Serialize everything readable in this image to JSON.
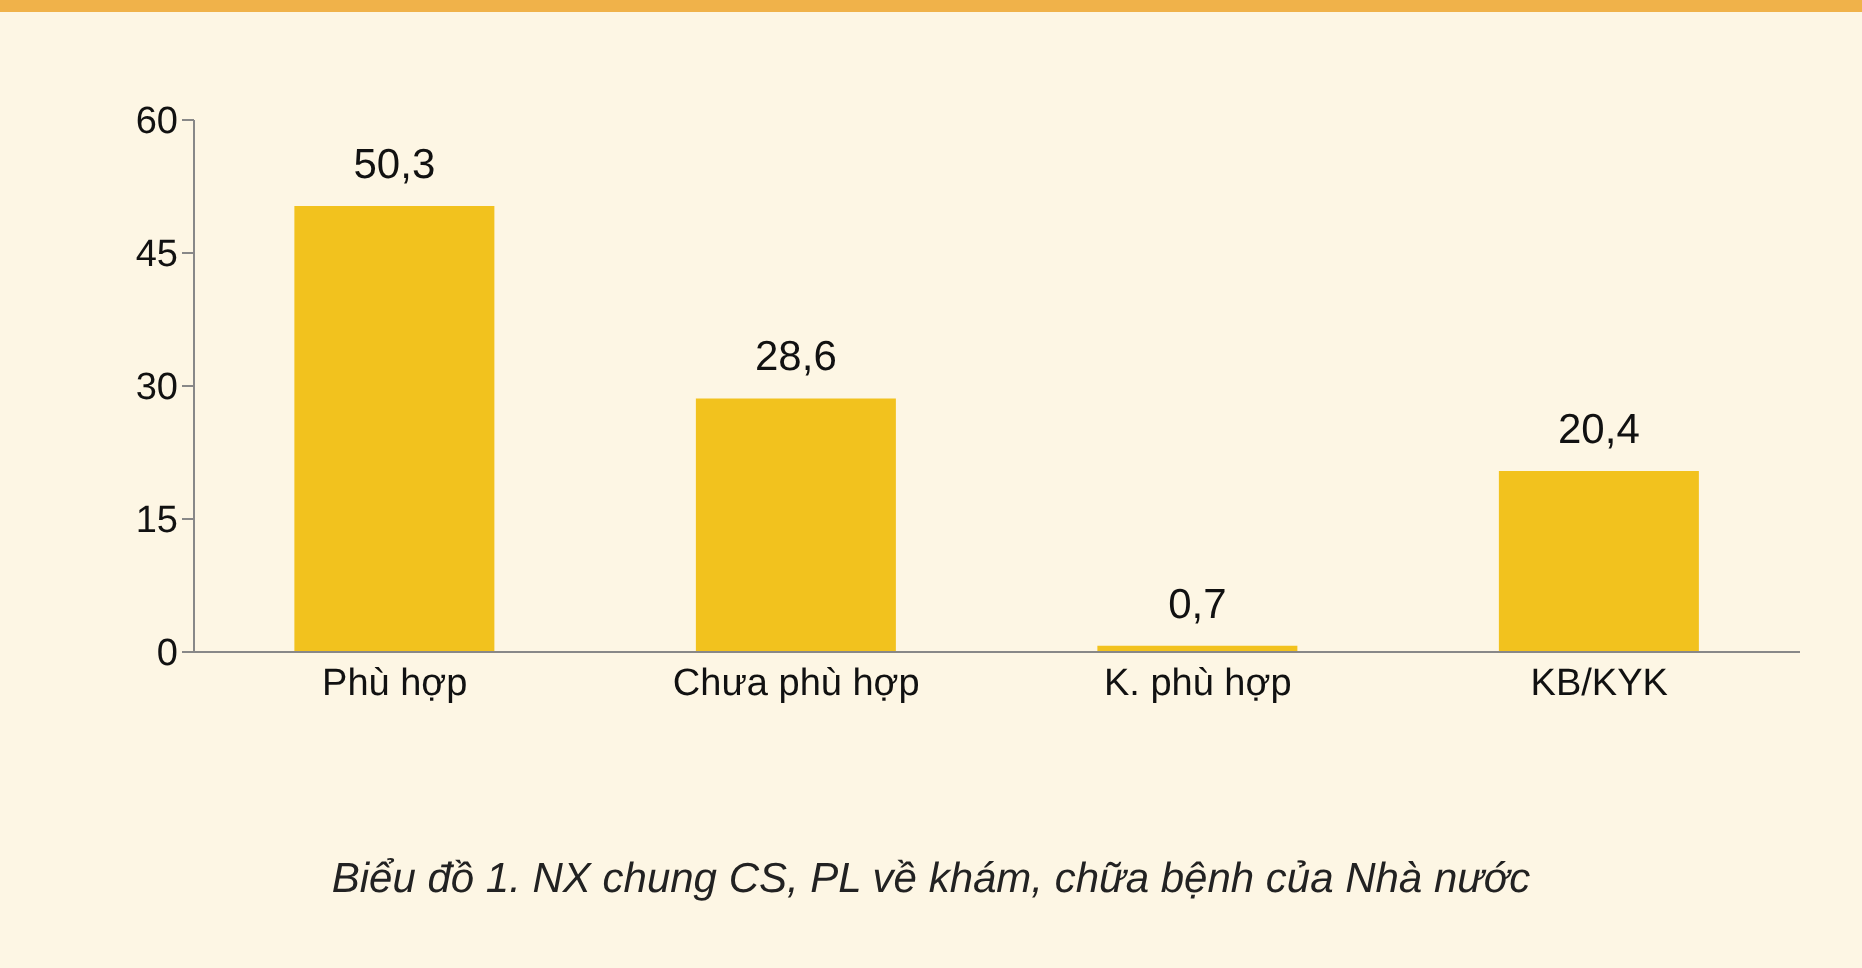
{
  "chart_data": {
    "type": "bar",
    "title": "Biểu đồ 1. NX chung CS, PL về khám, chữa bệnh của Nhà nước",
    "categories": [
      "Phù hợp",
      "Chưa phù hợp",
      "K. phù hợp",
      "KB/KYK"
    ],
    "values": [
      50.3,
      28.6,
      0.7,
      20.4
    ],
    "value_labels": [
      "50,3",
      "28,6",
      "0,7",
      "20,4"
    ],
    "color": "#f2c21e",
    "ylim": [
      0,
      60
    ],
    "yticks": [
      0,
      15,
      30,
      45,
      60
    ],
    "grid": false,
    "legend": false
  }
}
